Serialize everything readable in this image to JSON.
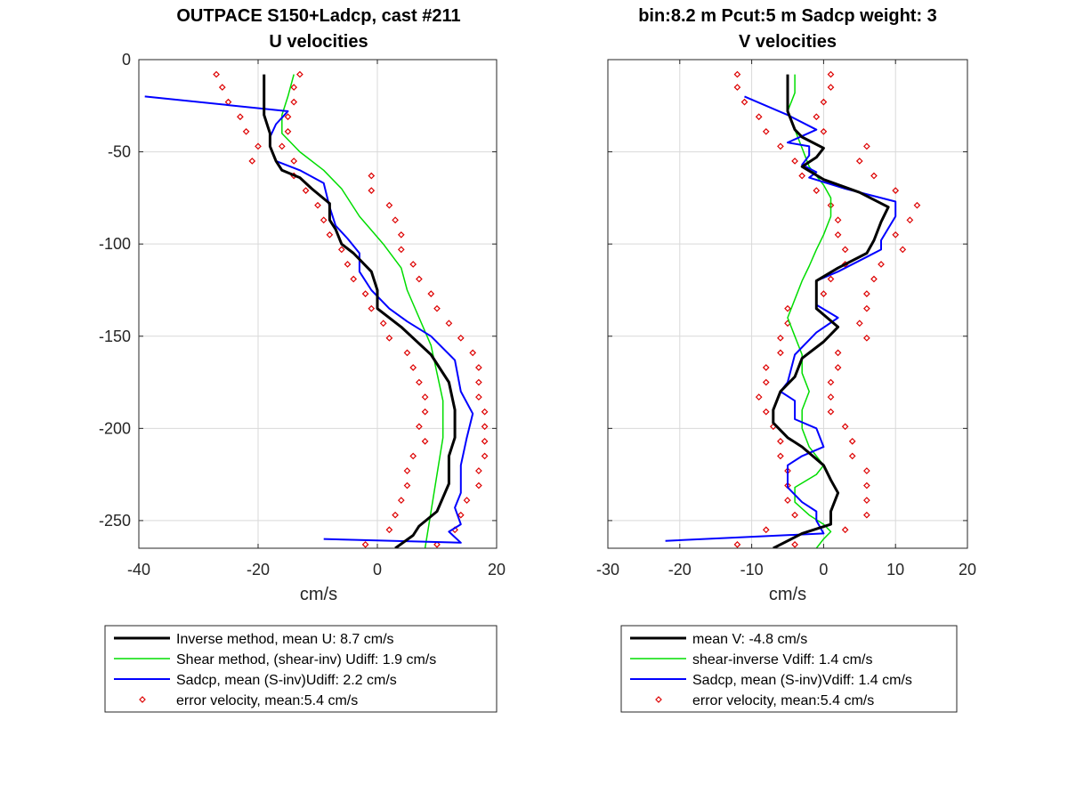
{
  "chart_data": [
    {
      "type": "line",
      "title": "OUTPACE S150+Ladcp, cast #211",
      "subtitle": "U velocities",
      "xlabel": "cm/s",
      "ylabel": "",
      "xlim": [
        -40,
        20
      ],
      "ylim": [
        -265,
        0
      ],
      "xticks": [
        -40,
        -20,
        0,
        20
      ],
      "xtick_labels": [
        "-40",
        "-20",
        "0",
        "20"
      ],
      "yticks": [
        0,
        -50,
        -100,
        -150,
        -200,
        -250
      ],
      "ytick_labels": [
        "0",
        "-50",
        "-100",
        "-150",
        "-200",
        "-250"
      ],
      "grid": true,
      "legend_position": "below",
      "series": [
        {
          "name": "Inverse method, mean U:  8.7 cm/s",
          "color": "#000000",
          "style": "line",
          "width": 3,
          "x": [
            -19,
            -19,
            -18,
            -18,
            -17,
            -16,
            -13,
            -11,
            -8,
            -8,
            -7,
            -6,
            -4,
            -1,
            0,
            0,
            4,
            9,
            12,
            13,
            13,
            12,
            12,
            10,
            7,
            6,
            3
          ],
          "y": [
            -8,
            -30,
            -40,
            -47,
            -55,
            -60,
            -64,
            -70,
            -78,
            -87,
            -92,
            -100,
            -105,
            -115,
            -125,
            -135,
            -145,
            -160,
            -175,
            -190,
            -205,
            -215,
            -230,
            -245,
            -253,
            -258,
            -265
          ]
        },
        {
          "name": "Shear method, (shear-inv)  Udiff:  1.9 cm/s",
          "color": "#00dd00",
          "style": "line",
          "width": 1.5,
          "x": [
            -14,
            -15,
            -16,
            -16,
            -13,
            -9,
            -6,
            -3,
            1,
            4,
            5,
            7,
            9,
            10,
            11,
            11,
            10,
            9,
            8
          ],
          "y": [
            -8,
            -20,
            -30,
            -40,
            -50,
            -60,
            -70,
            -85,
            -100,
            -113,
            -125,
            -140,
            -155,
            -170,
            -185,
            -205,
            -225,
            -245,
            -265
          ]
        },
        {
          "name": "Sadcp, mean (S-inv)Udiff: 2.2 cm/s",
          "color": "#0000ff",
          "style": "line",
          "width": 2,
          "x": [
            -39,
            -15,
            -17,
            -18,
            -18,
            -17,
            -13,
            -9,
            -8,
            -7,
            -5,
            -3,
            -3,
            -1,
            2,
            5,
            9,
            13,
            14,
            16,
            15,
            14,
            14,
            13,
            14,
            12,
            14,
            -9
          ],
          "y": [
            -20,
            -28,
            -35,
            -42,
            -47,
            -55,
            -60,
            -67,
            -80,
            -90,
            -97,
            -105,
            -115,
            -125,
            -135,
            -142,
            -150,
            -163,
            -180,
            -192,
            -205,
            -220,
            -235,
            -243,
            -252,
            -256,
            -262,
            -260
          ]
        },
        {
          "name": "error velocity, mean:5.4 cm/s",
          "color": "#dd0000",
          "style": "markers",
          "points": [
            [
              -27,
              -8
            ],
            [
              -13,
              -8
            ],
            [
              -26,
              -15
            ],
            [
              -14,
              -15
            ],
            [
              -25,
              -23
            ],
            [
              -14,
              -23
            ],
            [
              -23,
              -31
            ],
            [
              -15,
              -31
            ],
            [
              -22,
              -39
            ],
            [
              -15,
              -39
            ],
            [
              -20,
              -47
            ],
            [
              -16,
              -47
            ],
            [
              -21,
              -55
            ],
            [
              -14,
              -55
            ],
            [
              -14,
              -63
            ],
            [
              -1,
              -63
            ],
            [
              -12,
              -71
            ],
            [
              -1,
              -71
            ],
            [
              -10,
              -79
            ],
            [
              2,
              -79
            ],
            [
              -9,
              -87
            ],
            [
              3,
              -87
            ],
            [
              -8,
              -95
            ],
            [
              4,
              -95
            ],
            [
              -6,
              -103
            ],
            [
              4,
              -103
            ],
            [
              -5,
              -111
            ],
            [
              6,
              -111
            ],
            [
              -4,
              -119
            ],
            [
              7,
              -119
            ],
            [
              -2,
              -127
            ],
            [
              9,
              -127
            ],
            [
              -1,
              -135
            ],
            [
              10,
              -135
            ],
            [
              1,
              -143
            ],
            [
              12,
              -143
            ],
            [
              2,
              -151
            ],
            [
              14,
              -151
            ],
            [
              5,
              -159
            ],
            [
              16,
              -159
            ],
            [
              6,
              -167
            ],
            [
              17,
              -167
            ],
            [
              7,
              -175
            ],
            [
              17,
              -175
            ],
            [
              8,
              -183
            ],
            [
              17,
              -183
            ],
            [
              8,
              -191
            ],
            [
              18,
              -191
            ],
            [
              7,
              -199
            ],
            [
              18,
              -199
            ],
            [
              8,
              -207
            ],
            [
              18,
              -207
            ],
            [
              6,
              -215
            ],
            [
              18,
              -215
            ],
            [
              5,
              -223
            ],
            [
              17,
              -223
            ],
            [
              5,
              -231
            ],
            [
              17,
              -231
            ],
            [
              4,
              -239
            ],
            [
              15,
              -239
            ],
            [
              3,
              -247
            ],
            [
              14,
              -247
            ],
            [
              2,
              -255
            ],
            [
              13,
              -255
            ],
            [
              -2,
              -263
            ],
            [
              10,
              -263
            ]
          ]
        }
      ]
    },
    {
      "type": "line",
      "title": "bin:8.2 m  Pcut:5 m  Sadcp weight: 3",
      "subtitle": "V velocities",
      "xlabel": "cm/s",
      "ylabel": "",
      "xlim": [
        -30,
        20
      ],
      "ylim": [
        -265,
        0
      ],
      "xticks": [
        -30,
        -20,
        -10,
        0,
        10,
        20
      ],
      "xtick_labels": [
        "-30",
        "-20",
        "-10",
        "0",
        "10",
        "20"
      ],
      "yticks": [
        0,
        -50,
        -100,
        -150,
        -200,
        -250
      ],
      "grid": true,
      "legend_position": "below",
      "series": [
        {
          "name": "mean V:  -4.8 cm/s",
          "color": "#000000",
          "style": "line",
          "width": 3,
          "x": [
            -5,
            -5,
            -5,
            -4,
            -3,
            0,
            -1,
            -3,
            0,
            5,
            9,
            8,
            7,
            6,
            2,
            -1,
            -1,
            2,
            0,
            -3,
            -4,
            -6,
            -7,
            -7,
            -5,
            -3,
            0,
            1,
            2,
            1,
            1,
            -3,
            -7
          ],
          "y": [
            -8,
            -20,
            -28,
            -38,
            -42,
            -48,
            -53,
            -58,
            -65,
            -72,
            -80,
            -88,
            -98,
            -105,
            -113,
            -120,
            -135,
            -145,
            -153,
            -162,
            -172,
            -180,
            -190,
            -197,
            -205,
            -210,
            -220,
            -228,
            -235,
            -245,
            -252,
            -257,
            -265
          ]
        },
        {
          "name": "shear-inverse Vdiff:  1.4 cm/s",
          "color": "#00dd00",
          "style": "line",
          "width": 1.5,
          "x": [
            -4,
            -4,
            -5,
            -4,
            -3,
            -2,
            0,
            1,
            1,
            0,
            -1,
            -2,
            -3,
            -4,
            -5,
            -4,
            -3,
            -3,
            -2,
            -3,
            -3,
            -2,
            0,
            -1,
            -4,
            -4,
            -2,
            0,
            1,
            0,
            -1
          ],
          "y": [
            -8,
            -18,
            -28,
            -38,
            -48,
            -58,
            -68,
            -75,
            -85,
            -95,
            -103,
            -112,
            -120,
            -130,
            -140,
            -150,
            -160,
            -170,
            -180,
            -190,
            -200,
            -210,
            -220,
            -225,
            -232,
            -240,
            -247,
            -252,
            -256,
            -260,
            -265
          ]
        },
        {
          "name": "Sadcp, mean (S-inv)Vdiff: 1.4 cm/s",
          "color": "#0000ff",
          "style": "line",
          "width": 2,
          "x": [
            -11,
            -5,
            -1,
            -5,
            -2,
            -2,
            -3,
            -1,
            -2,
            3,
            10,
            10,
            8,
            8,
            6,
            2,
            -1,
            -1,
            2,
            -1,
            -4,
            -5,
            -6,
            -4,
            -4,
            -1,
            0,
            -3,
            -5,
            -5,
            -3,
            -1,
            -1,
            0,
            -22
          ],
          "y": [
            -20,
            -30,
            -38,
            -45,
            -47,
            -52,
            -57,
            -61,
            -64,
            -70,
            -77,
            -85,
            -98,
            -103,
            -107,
            -115,
            -120,
            -133,
            -140,
            -148,
            -160,
            -175,
            -180,
            -185,
            -195,
            -200,
            -210,
            -215,
            -220,
            -232,
            -240,
            -245,
            -250,
            -257,
            -261
          ]
        },
        {
          "name": "error velocity, mean:5.4 cm/s",
          "color": "#dd0000",
          "style": "markers",
          "points": [
            [
              -12,
              -8
            ],
            [
              1,
              -8
            ],
            [
              -12,
              -15
            ],
            [
              1,
              -15
            ],
            [
              -11,
              -23
            ],
            [
              0,
              -23
            ],
            [
              -9,
              -31
            ],
            [
              -1,
              -31
            ],
            [
              -8,
              -39
            ],
            [
              0,
              -39
            ],
            [
              -6,
              -47
            ],
            [
              6,
              -47
            ],
            [
              -4,
              -55
            ],
            [
              5,
              -55
            ],
            [
              -3,
              -63
            ],
            [
              7,
              -63
            ],
            [
              -1,
              -71
            ],
            [
              10,
              -71
            ],
            [
              1,
              -79
            ],
            [
              13,
              -79
            ],
            [
              2,
              -87
            ],
            [
              12,
              -87
            ],
            [
              2,
              -95
            ],
            [
              10,
              -95
            ],
            [
              3,
              -103
            ],
            [
              11,
              -103
            ],
            [
              3,
              -111
            ],
            [
              8,
              -111
            ],
            [
              1,
              -119
            ],
            [
              7,
              -119
            ],
            [
              0,
              -127
            ],
            [
              6,
              -127
            ],
            [
              -5,
              -135
            ],
            [
              6,
              -135
            ],
            [
              -5,
              -143
            ],
            [
              5,
              -143
            ],
            [
              -6,
              -151
            ],
            [
              6,
              -151
            ],
            [
              -6,
              -159
            ],
            [
              2,
              -159
            ],
            [
              -8,
              -167
            ],
            [
              2,
              -167
            ],
            [
              -8,
              -175
            ],
            [
              1,
              -175
            ],
            [
              -9,
              -183
            ],
            [
              1,
              -183
            ],
            [
              -8,
              -191
            ],
            [
              1,
              -191
            ],
            [
              -7,
              -199
            ],
            [
              3,
              -199
            ],
            [
              -6,
              -207
            ],
            [
              4,
              -207
            ],
            [
              -6,
              -215
            ],
            [
              4,
              -215
            ],
            [
              -5,
              -223
            ],
            [
              6,
              -223
            ],
            [
              -5,
              -231
            ],
            [
              6,
              -231
            ],
            [
              -5,
              -239
            ],
            [
              6,
              -239
            ],
            [
              -4,
              -247
            ],
            [
              6,
              -247
            ],
            [
              -8,
              -255
            ],
            [
              3,
              -255
            ],
            [
              -12,
              -263
            ],
            [
              -4,
              -263
            ]
          ]
        }
      ]
    }
  ]
}
